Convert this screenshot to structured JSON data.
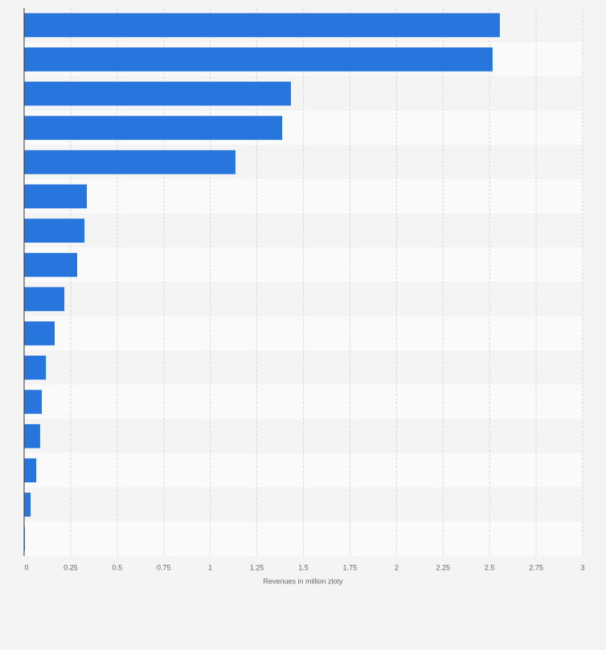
{
  "chart_data": {
    "type": "bar",
    "orientation": "horizontal",
    "categories": [
      null,
      null,
      null,
      null,
      null,
      null,
      null,
      null,
      null,
      null,
      null,
      null,
      null,
      null,
      null,
      null
    ],
    "values": [
      2.555,
      2.516,
      1.433,
      1.386,
      1.135,
      0.337,
      0.324,
      0.285,
      0.216,
      0.164,
      0.117,
      0.095,
      0.086,
      0.065,
      0.035,
      0.004
    ],
    "color": "#2876dd",
    "xlabel": "Revenues in million zloty",
    "xlim": [
      0,
      3
    ],
    "xticks": [
      0,
      0.25,
      0.5,
      0.75,
      1,
      1.25,
      1.5,
      1.75,
      2,
      2.25,
      2.5,
      2.75,
      3
    ],
    "grid": true
  }
}
